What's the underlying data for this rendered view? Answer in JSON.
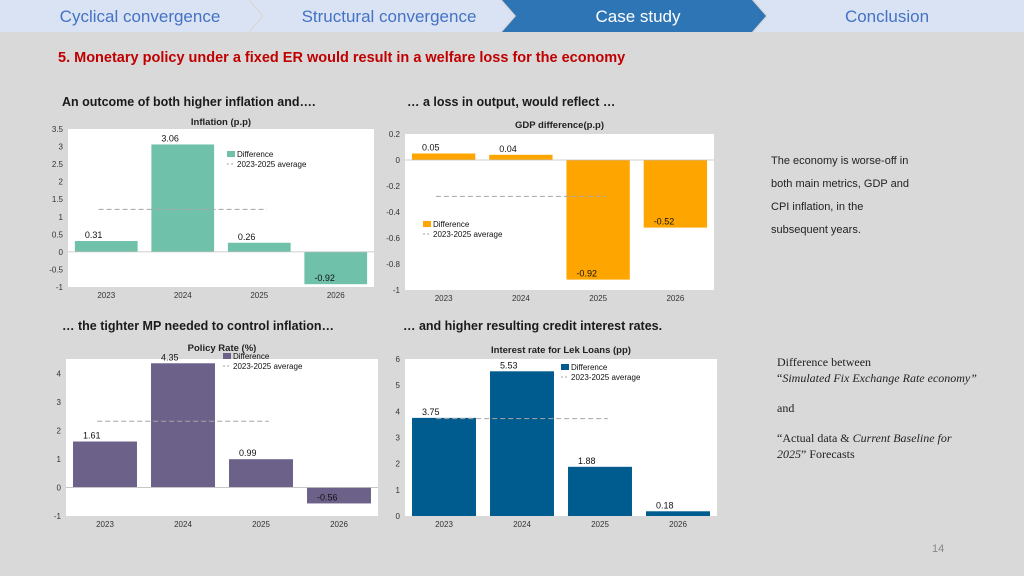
{
  "nav": {
    "tabs": [
      {
        "label": "Cyclical convergence",
        "active": false
      },
      {
        "label": "Structural convergence",
        "active": false
      },
      {
        "label": "Case study",
        "active": true
      },
      {
        "label": "Conclusion",
        "active": false
      }
    ]
  },
  "slide": {
    "title": "5. Monetary policy under a fixed ER would result in a welfare loss for the economy",
    "captions": {
      "top_left": "An outcome of both higher inflation and….",
      "top_right": "… a loss in output, would reflect …",
      "bottom_left": "… the tighter MP needed to control inflation…",
      "bottom_right": "… and higher resulting credit interest rates."
    },
    "side_text": [
      "The economy is worse-off in",
      "both main metrics, GDP and",
      "CPI inflation, in the",
      "subsequent years."
    ],
    "note": {
      "line1": "Difference  between",
      "line2a": "“",
      "line2b": "Simulated Fix Exchange Rate economy”",
      "line3": "and",
      "line4a": "“Actual data & ",
      "line4b": "Current Baseline for 2025",
      "line4c": "” Forecasts"
    },
    "page_number": "14"
  },
  "colors": {
    "nav_bg": "#dae3f3",
    "nav_active": "#2e75b6",
    "nav_text": "#4472c4",
    "inflation": "#70c1a9",
    "gdp": "#ffa500",
    "policy": "#6c6189",
    "interest": "#005b8e"
  },
  "chart_data": [
    {
      "type": "bar",
      "title": "Inflation (p.p)",
      "categories": [
        "2023",
        "2024",
        "2025",
        "2026"
      ],
      "series": [
        {
          "name": "Difference",
          "values": [
            0.31,
            3.06,
            0.26,
            -0.92
          ]
        }
      ],
      "value_labels": [
        "0.31",
        "3.06",
        "0.26",
        "-0.92"
      ],
      "average": {
        "name": "2023-2025 average",
        "value": 1.21
      },
      "ylim": [
        -1,
        3.5
      ],
      "yticks": [
        -1,
        -0.5,
        0,
        0.5,
        1,
        1.5,
        2,
        2.5,
        3,
        3.5
      ],
      "ytick_labels": [
        "-1",
        "-0.5",
        "0",
        "0.5",
        "1",
        "1.5",
        "2",
        "2.5",
        "3",
        "3.5"
      ],
      "color": "#70c1a9"
    },
    {
      "type": "bar",
      "title": "GDP difference(p.p)",
      "categories": [
        "2023",
        "2024",
        "2025",
        "2026"
      ],
      "series": [
        {
          "name": "Difference",
          "values": [
            0.05,
            0.04,
            -0.92,
            -0.52
          ]
        }
      ],
      "value_labels": [
        "0.05",
        "0.04",
        "-0.92",
        "-0.52"
      ],
      "average": {
        "name": "2023-2025 average",
        "value": -0.28
      },
      "ylim": [
        -1,
        0.2
      ],
      "yticks": [
        -1,
        -0.8,
        -0.6,
        -0.4,
        -0.2,
        0,
        0.2
      ],
      "ytick_labels": [
        "-1",
        "-0.8",
        "-0.6",
        "-0.4",
        "-0.2",
        "0",
        "0.2"
      ],
      "color": "#ffa500"
    },
    {
      "type": "bar",
      "title": "Policy Rate (%)",
      "categories": [
        "2023",
        "2024",
        "2025",
        "2026"
      ],
      "series": [
        {
          "name": "Difference",
          "values": [
            1.61,
            4.35,
            0.99,
            -0.56
          ]
        }
      ],
      "value_labels": [
        "1.61",
        "4.35",
        "0.99",
        "-0.56"
      ],
      "average": {
        "name": "2023-2025 average",
        "value": 2.32
      },
      "ylim": [
        -1,
        4.5
      ],
      "yticks": [
        -1,
        0,
        1,
        2,
        3,
        4
      ],
      "ytick_labels": [
        "-1",
        "0",
        "1",
        "2",
        "3",
        "4"
      ],
      "color": "#6c6189"
    },
    {
      "type": "bar",
      "title": "Interest rate for Lek Loans (pp)",
      "categories": [
        "2023",
        "2024",
        "2025",
        "2026"
      ],
      "series": [
        {
          "name": "Difference",
          "values": [
            3.75,
            5.53,
            1.88,
            0.18
          ]
        }
      ],
      "value_labels": [
        "3.75",
        "5.53",
        "1.88",
        "0.18"
      ],
      "average": {
        "name": "2023-2025 average",
        "value": 3.72
      },
      "ylim": [
        0,
        6
      ],
      "yticks": [
        0,
        1,
        2,
        3,
        4,
        5,
        6
      ],
      "ytick_labels": [
        "0",
        "1",
        "2",
        "3",
        "4",
        "5",
        "6"
      ],
      "color": "#005b8e"
    }
  ]
}
